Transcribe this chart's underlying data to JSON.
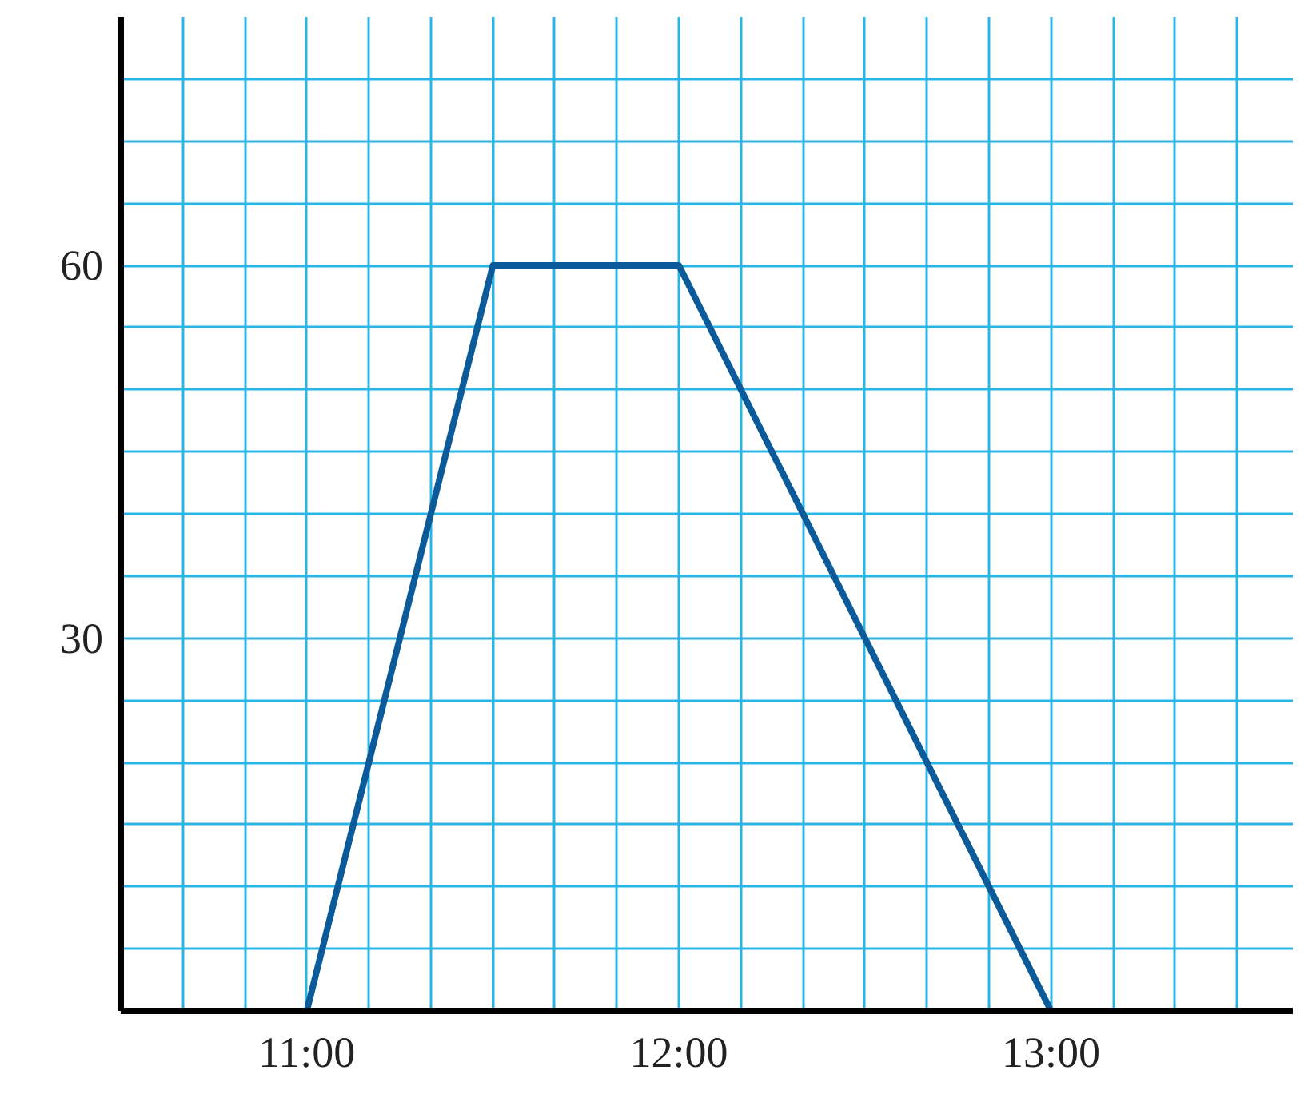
{
  "chart_data": {
    "type": "line",
    "x": [
      11,
      11.5,
      12,
      13
    ],
    "values": [
      0,
      60,
      60,
      0
    ],
    "color": "#0b5a9a",
    "xlim": [
      10.5,
      13.65
    ],
    "ylim": [
      0,
      80
    ],
    "xticks": [
      {
        "value": 10.5,
        "label": null
      },
      {
        "value": 10.6667,
        "label": null
      },
      {
        "value": 10.8333,
        "label": null
      },
      {
        "value": 11,
        "label": "11:00"
      },
      {
        "value": 11.1667,
        "label": null
      },
      {
        "value": 11.3333,
        "label": null
      },
      {
        "value": 11.5,
        "label": null
      },
      {
        "value": 11.6667,
        "label": null
      },
      {
        "value": 11.8333,
        "label": null
      },
      {
        "value": 12,
        "label": "12:00"
      },
      {
        "value": 12.1667,
        "label": null
      },
      {
        "value": 12.3333,
        "label": null
      },
      {
        "value": 12.5,
        "label": null
      },
      {
        "value": 12.6667,
        "label": null
      },
      {
        "value": 12.8333,
        "label": null
      },
      {
        "value": 13,
        "label": "13:00"
      },
      {
        "value": 13.1667,
        "label": null
      },
      {
        "value": 13.3333,
        "label": null
      },
      {
        "value": 13.5,
        "label": null
      }
    ],
    "yticks": [
      {
        "value": 5,
        "label": null
      },
      {
        "value": 10,
        "label": null
      },
      {
        "value": 15,
        "label": null
      },
      {
        "value": 20,
        "label": null
      },
      {
        "value": 25,
        "label": null
      },
      30,
      {
        "value": 35,
        "label": null
      },
      {
        "value": 40,
        "label": null
      },
      {
        "value": 45,
        "label": null
      },
      {
        "value": 50,
        "label": null
      },
      {
        "value": 55,
        "label": null
      },
      60,
      {
        "value": 65,
        "label": null
      },
      {
        "value": 70,
        "label": null
      },
      {
        "value": 75,
        "label": null
      }
    ],
    "grid": true,
    "marker": "none",
    "line_style": "solid"
  }
}
